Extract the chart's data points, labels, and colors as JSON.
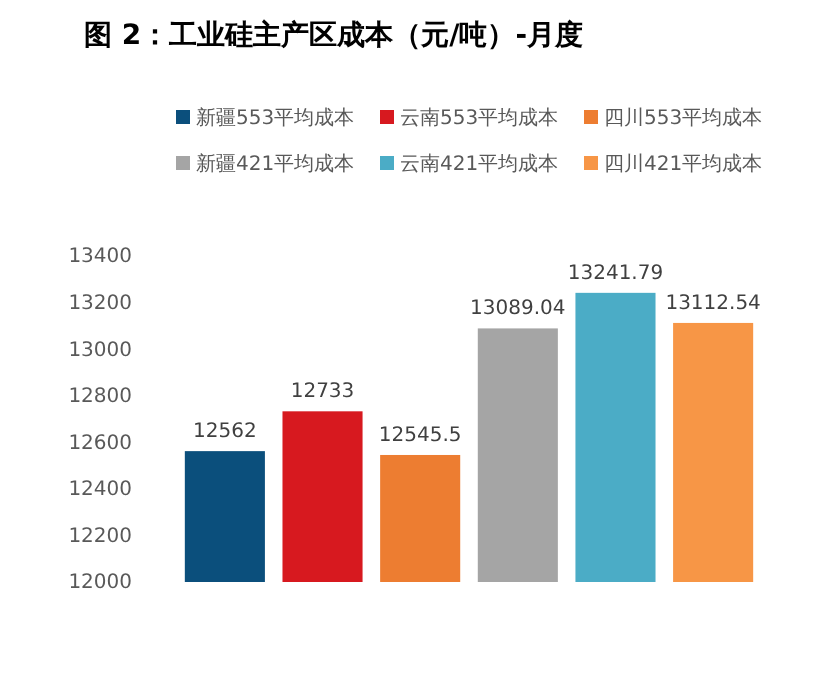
{
  "chart_data": {
    "type": "bar",
    "title": "图 2：工业硅主产区成本（元/吨）-月度",
    "categories": [
      null
    ],
    "series": [
      {
        "name": "新疆553平均成本",
        "color": "#0b4f7c",
        "values": [
          12562
        ]
      },
      {
        "name": "云南553平均成本",
        "color": "#d7191f",
        "values": [
          12733
        ]
      },
      {
        "name": "四川553平均成本",
        "color": "#ed7d31",
        "values": [
          12545.5
        ]
      },
      {
        "name": "新疆421平均成本",
        "color": "#a5a5a5",
        "values": [
          13089.04
        ]
      },
      {
        "name": "云南421平均成本",
        "color": "#4bacc6",
        "values": [
          13241.79
        ]
      },
      {
        "name": "四川421平均成本",
        "color": "#f79646",
        "values": [
          13112.54
        ]
      }
    ],
    "ylim": [
      12000,
      13400
    ],
    "yticks": [
      12000,
      12200,
      12400,
      12600,
      12800,
      13000,
      13200,
      13400
    ],
    "data_labels": true,
    "legend": "top"
  }
}
